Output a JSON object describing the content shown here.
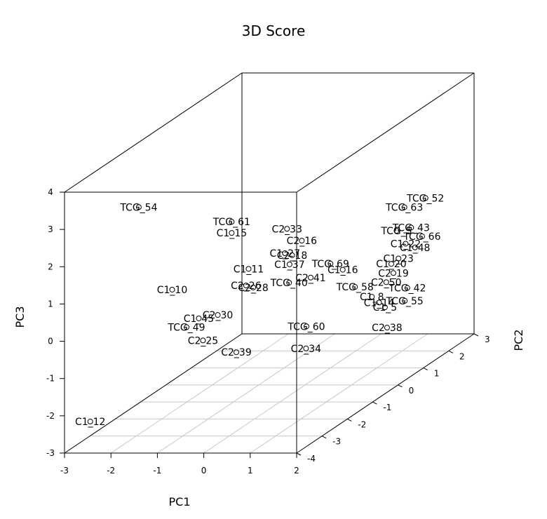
{
  "chart_data": {
    "type": "scatter",
    "projection": "3d",
    "title": "3D Score",
    "xlabel": "PC1",
    "ylabel": "PC2",
    "zlabel": "PC3",
    "xlim": [
      -3,
      2
    ],
    "ylim": [
      -4,
      3
    ],
    "zlim": [
      -3,
      4
    ],
    "x_ticks": [
      "-3",
      "-2",
      "-1",
      "0",
      "1",
      "2"
    ],
    "y_ticks": [
      "-4",
      "-3",
      "-2",
      "-1",
      "0",
      "1",
      "2",
      "3"
    ],
    "z_ticks": [
      "-3",
      "-2",
      "-1",
      "0",
      "1",
      "2",
      "3",
      "4"
    ],
    "grid_floor": true,
    "points": [
      {
        "label": "TCG_54",
        "x": -1.4,
        "y": -4.0,
        "z": 3.6
      },
      {
        "label": "TCG_52",
        "x": 1.5,
        "y": 2.0,
        "z": 1.1
      },
      {
        "label": "TCG_63",
        "x": 1.1,
        "y": 1.9,
        "z": 0.9
      },
      {
        "label": "TCG_43",
        "x": 1.3,
        "y": 1.8,
        "z": 0.4
      },
      {
        "label": "TCG_66",
        "x": 1.7,
        "y": 1.5,
        "z": 0.3
      },
      {
        "label": "TCG_5",
        "x": 1.15,
        "y": 1.5,
        "z": 0.45
      },
      {
        "label": "C1_22",
        "x": 1.4,
        "y": 1.4,
        "z": 0.15
      },
      {
        "label": "C1_48",
        "x": 1.6,
        "y": 1.4,
        "z": 0.05
      },
      {
        "label": "C1_23",
        "x": 1.3,
        "y": 1.3,
        "z": -0.2
      },
      {
        "label": "C1_20",
        "x": 1.2,
        "y": 1.2,
        "z": -0.3
      },
      {
        "label": "C2_19",
        "x": 1.3,
        "y": 1.1,
        "z": -0.5
      },
      {
        "label": "C2_50",
        "x": 1.2,
        "y": 1.0,
        "z": -0.7
      },
      {
        "label": "TCG_61",
        "x": -0.6,
        "y": -1.8,
        "z": 2.2
      },
      {
        "label": "C1_15",
        "x": -0.6,
        "y": -1.8,
        "z": 1.9
      },
      {
        "label": "C2_33",
        "x": 0.1,
        "y": -0.9,
        "z": 1.6
      },
      {
        "label": "C2_16",
        "x": 0.2,
        "y": -0.5,
        "z": 1.1
      },
      {
        "label": "C1_27",
        "x": 0.0,
        "y": -0.8,
        "z": 0.9
      },
      {
        "label": "C2_18",
        "x": 0.1,
        "y": -0.7,
        "z": 0.8
      },
      {
        "label": "TCG_42",
        "x": 1.6,
        "y": 1.1,
        "z": -0.9
      },
      {
        "label": "TCG_55",
        "x": 1.6,
        "y": 1.0,
        "z": -1.2
      },
      {
        "label": "C1_14",
        "x": 1.1,
        "y": 0.9,
        "z": -1.2
      },
      {
        "label": "C1_8",
        "x": 1.0,
        "y": 0.8,
        "z": -1.0
      },
      {
        "label": "TCG_58",
        "x": 0.8,
        "y": 0.5,
        "z": -0.6
      },
      {
        "label": "C1_11",
        "x": -0.4,
        "y": -1.5,
        "z": 0.8
      },
      {
        "label": "C1_37",
        "x": 0.1,
        "y": -0.8,
        "z": 0.6
      },
      {
        "label": "TCG_69",
        "x": 0.6,
        "y": -0.1,
        "z": 0.3
      },
      {
        "label": "C1_16",
        "x": 0.7,
        "y": 0.2,
        "z": 0.0
      },
      {
        "label": "C2_26",
        "x": -0.4,
        "y": -1.6,
        "z": 0.4
      },
      {
        "label": "C2_28",
        "x": -0.3,
        "y": -1.5,
        "z": 0.3
      },
      {
        "label": "TCG_40",
        "x": 0.2,
        "y": -1.0,
        "z": 0.2
      },
      {
        "label": "C2_41",
        "x": 0.5,
        "y": -0.7,
        "z": 0.2
      },
      {
        "label": "C1_5",
        "x": 1.5,
        "y": 0.4,
        "z": -1.1
      },
      {
        "label": "C1_10",
        "x": -1.5,
        "y": -2.5,
        "z": 0.7
      },
      {
        "label": "TCG_60",
        "x": 0.3,
        "y": -0.5,
        "z": -1.2
      },
      {
        "label": "C2_38",
        "x": 1.6,
        "y": 0.3,
        "z": -1.6
      },
      {
        "label": "C1_45",
        "x": -1.2,
        "y": -2.0,
        "z": -0.3
      },
      {
        "label": "C2_30",
        "x": -0.9,
        "y": -1.8,
        "z": -0.3
      },
      {
        "label": "TCG_49",
        "x": -1.3,
        "y": -2.3,
        "z": -0.4
      },
      {
        "label": "C2_25",
        "x": -1.0,
        "y": -2.2,
        "z": -0.8
      },
      {
        "label": "C2_34",
        "x": 0.4,
        "y": -0.7,
        "z": -1.7
      },
      {
        "label": "C2_39",
        "x": -0.5,
        "y": -1.8,
        "z": -1.3
      },
      {
        "label": "C1_12",
        "x": -2.5,
        "y": -3.9,
        "z": -2.2
      }
    ]
  }
}
